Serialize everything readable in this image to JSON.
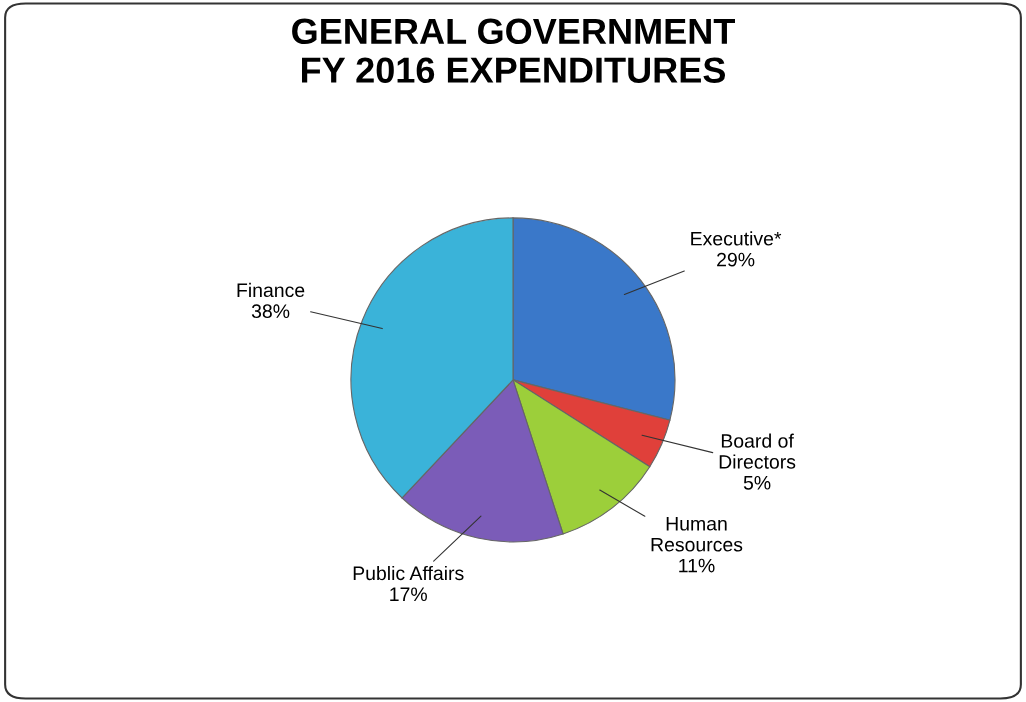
{
  "chart_data": {
    "type": "pie",
    "title": "GENERAL GOVERNMENT\nFY 2016 EXPENDITURES",
    "categories": [
      "Executive*",
      "Board of Directors",
      "Human Resources",
      "Public Affairs",
      "Finance"
    ],
    "values": [
      29,
      5,
      11,
      17,
      38
    ],
    "value_labels": [
      "29%",
      "5%",
      "11%",
      "17%",
      "38%"
    ],
    "colors": [
      "#3a78c9",
      "#e0403a",
      "#9ccf3a",
      "#7b5cb8",
      "#3ab3d9"
    ]
  }
}
